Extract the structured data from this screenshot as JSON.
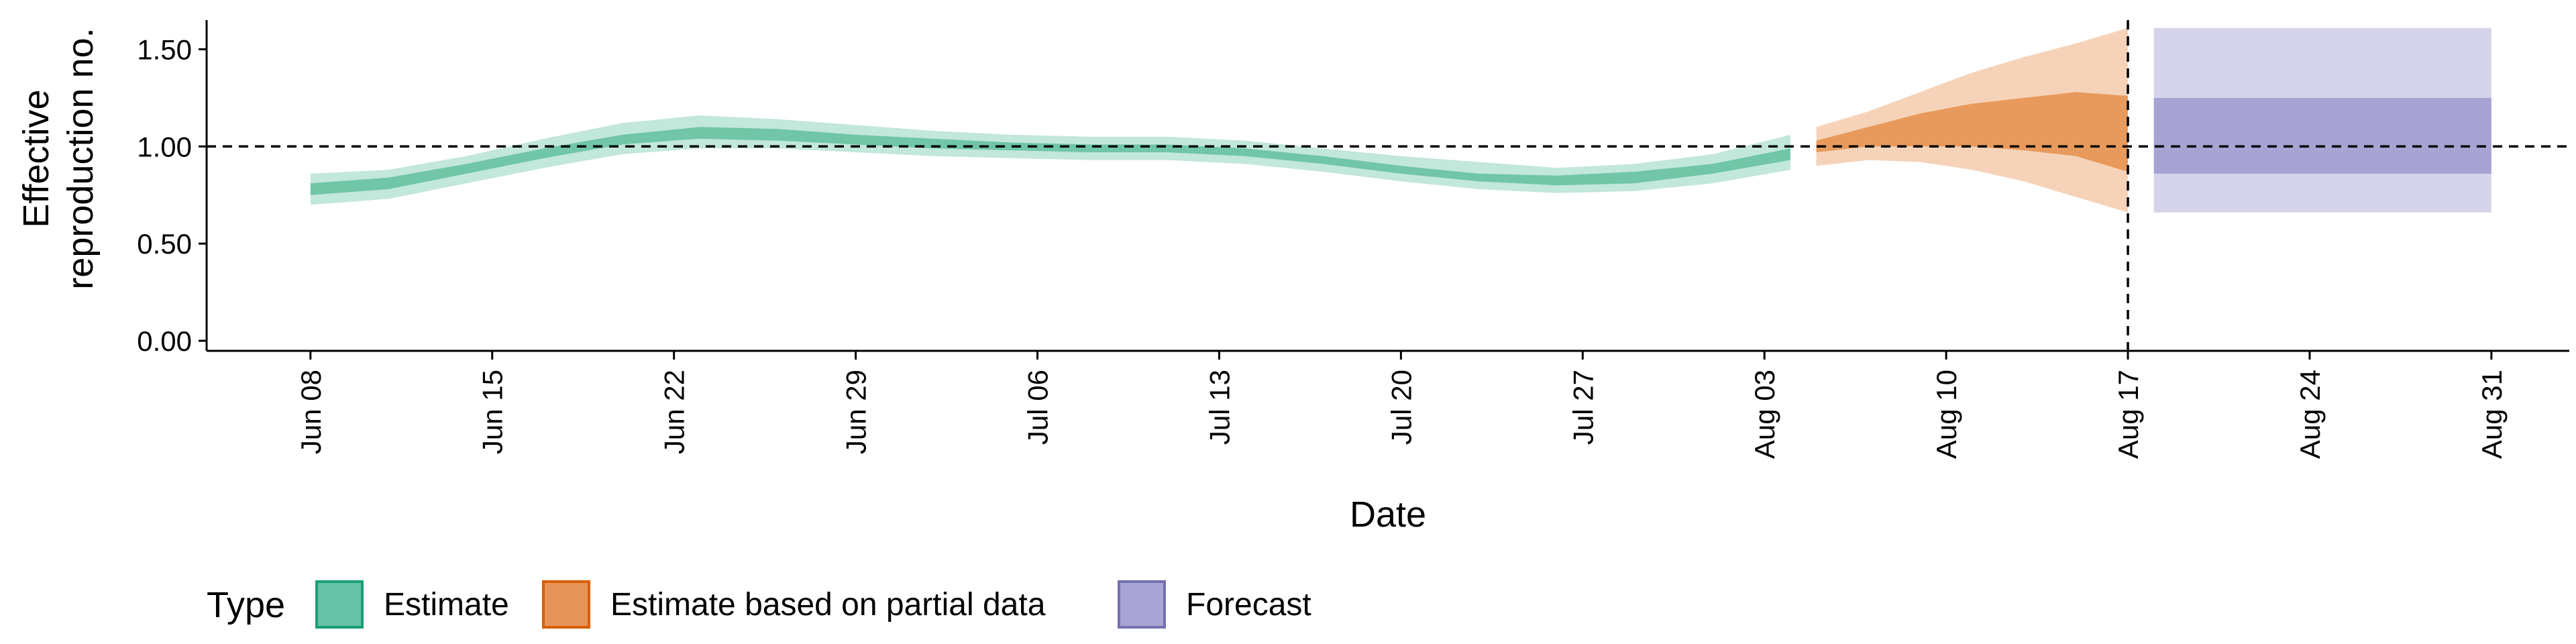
{
  "chart_data": {
    "type": "area",
    "title": "",
    "xlabel": "Date",
    "ylabel": [
      "Effective",
      "reproduction no."
    ],
    "ylim": [
      0.0,
      1.65
    ],
    "xlim": [
      "2020-06-04",
      "2020-09-03"
    ],
    "y_ticks": [
      "0.00",
      "0.50",
      "1.00",
      "1.50"
    ],
    "x_ticks": [
      {
        "date": "2020-06-08",
        "label": "Jun 08"
      },
      {
        "date": "2020-06-15",
        "label": "Jun 15"
      },
      {
        "date": "2020-06-22",
        "label": "Jun 22"
      },
      {
        "date": "2020-06-29",
        "label": "Jun 29"
      },
      {
        "date": "2020-07-06",
        "label": "Jul 06"
      },
      {
        "date": "2020-07-13",
        "label": "Jul 13"
      },
      {
        "date": "2020-07-20",
        "label": "Jul 20"
      },
      {
        "date": "2020-07-27",
        "label": "Jul 27"
      },
      {
        "date": "2020-08-03",
        "label": "Aug 03"
      },
      {
        "date": "2020-08-10",
        "label": "Aug 10"
      },
      {
        "date": "2020-08-17",
        "label": "Aug 17"
      },
      {
        "date": "2020-08-24",
        "label": "Aug 24"
      },
      {
        "date": "2020-08-31",
        "label": "Aug 31"
      }
    ],
    "reference_line": {
      "y": 1.0,
      "style": "dashed"
    },
    "vertical_line": {
      "date": "2020-08-17",
      "style": "dashed"
    },
    "grid": false,
    "legend": {
      "position": "bottom-left",
      "title": "Type",
      "items": [
        {
          "label": "Estimate",
          "fill": "#66c2a5",
          "border": "#1b9e77"
        },
        {
          "label": "Estimate based on partial data",
          "fill": "#e6955a",
          "border": "#d95f02"
        },
        {
          "label": "Forecast",
          "fill": "#a8a4d4",
          "border": "#7570b3"
        }
      ]
    },
    "series": [
      {
        "name": "Estimate",
        "outer_color": "#8fd3bd",
        "inner_color": "#6cc4a4",
        "outer_opacity": 0.55,
        "inner_opacity": 0.95,
        "x": [
          "2020-06-08",
          "2020-06-11",
          "2020-06-14",
          "2020-06-17",
          "2020-06-20",
          "2020-06-23",
          "2020-06-26",
          "2020-06-29",
          "2020-07-02",
          "2020-07-05",
          "2020-07-08",
          "2020-07-11",
          "2020-07-14",
          "2020-07-17",
          "2020-07-20",
          "2020-07-23",
          "2020-07-26",
          "2020-07-29",
          "2020-08-01",
          "2020-08-04"
        ],
        "lower90": [
          0.7,
          0.73,
          0.81,
          0.89,
          0.96,
          0.99,
          0.99,
          0.97,
          0.95,
          0.94,
          0.93,
          0.93,
          0.91,
          0.87,
          0.82,
          0.78,
          0.76,
          0.77,
          0.81,
          0.88
        ],
        "upper90": [
          0.86,
          0.88,
          0.95,
          1.04,
          1.12,
          1.16,
          1.14,
          1.11,
          1.08,
          1.06,
          1.05,
          1.05,
          1.03,
          0.99,
          0.95,
          0.92,
          0.89,
          0.91,
          0.96,
          1.06
        ],
        "lower50": [
          0.75,
          0.78,
          0.86,
          0.94,
          1.01,
          1.04,
          1.03,
          1.01,
          0.99,
          0.98,
          0.97,
          0.97,
          0.95,
          0.91,
          0.86,
          0.82,
          0.8,
          0.81,
          0.86,
          0.93
        ],
        "upper50": [
          0.81,
          0.84,
          0.91,
          0.99,
          1.06,
          1.1,
          1.09,
          1.06,
          1.04,
          1.02,
          1.01,
          1.01,
          0.99,
          0.95,
          0.9,
          0.86,
          0.85,
          0.87,
          0.91,
          0.99
        ]
      },
      {
        "name": "Estimate based on partial data",
        "outer_color": "#f2c09a",
        "inner_color": "#e89a5c",
        "outer_opacity": 0.7,
        "inner_opacity": 1.0,
        "x": [
          "2020-08-05",
          "2020-08-07",
          "2020-08-09",
          "2020-08-11",
          "2020-08-13",
          "2020-08-15",
          "2020-08-17"
        ],
        "lower90": [
          0.9,
          0.93,
          0.92,
          0.88,
          0.82,
          0.74,
          0.66
        ],
        "upper90": [
          1.1,
          1.18,
          1.28,
          1.38,
          1.46,
          1.53,
          1.61
        ],
        "lower50": [
          0.97,
          1.0,
          1.0,
          1.0,
          0.98,
          0.95,
          0.87
        ],
        "upper50": [
          1.03,
          1.1,
          1.17,
          1.22,
          1.25,
          1.28,
          1.26
        ]
      },
      {
        "name": "Forecast",
        "outer_color": "#d4d2ea",
        "inner_color": "#a7a3d3",
        "outer_opacity": 0.95,
        "inner_opacity": 1.0,
        "x": [
          "2020-08-18",
          "2020-08-31"
        ],
        "lower90": [
          0.66,
          0.66
        ],
        "upper90": [
          1.61,
          1.61
        ],
        "lower50": [
          0.86,
          0.86
        ],
        "upper50": [
          1.25,
          1.25
        ]
      }
    ]
  }
}
